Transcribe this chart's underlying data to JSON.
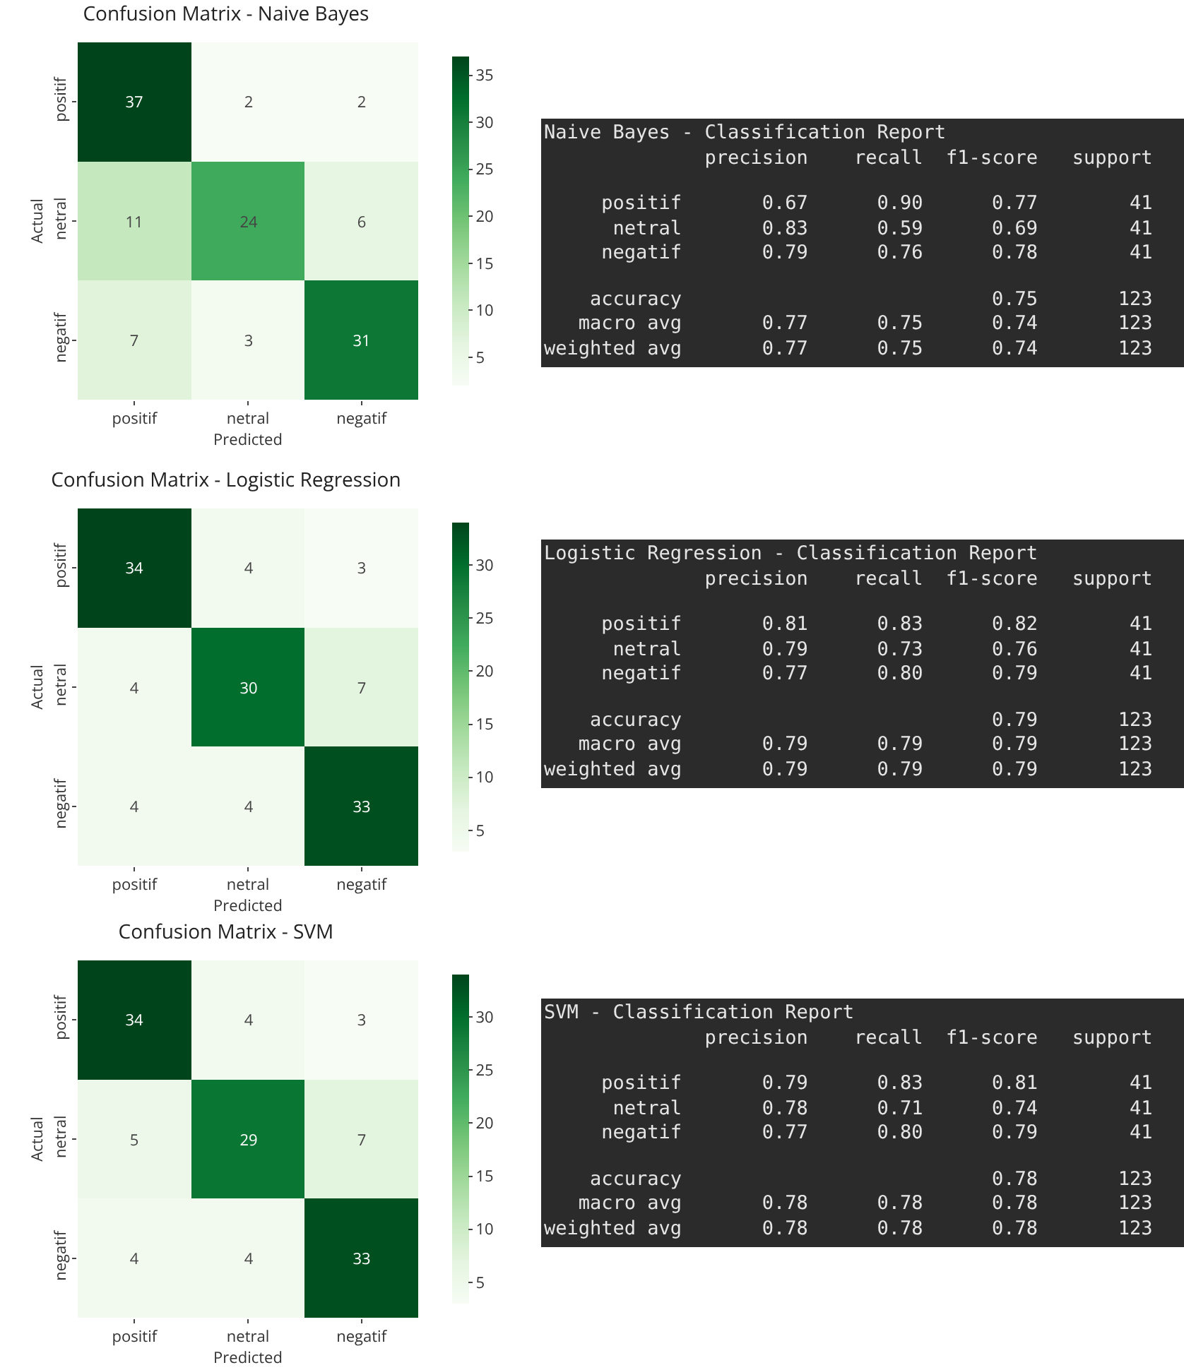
{
  "chart_data": [
    {
      "type": "heatmap",
      "title": "Confusion Matrix - Naive Bayes",
      "xlabel": "Predicted",
      "ylabel": "Actual",
      "categories": [
        "positif",
        "netral",
        "negatif"
      ],
      "y_categories": [
        "positif",
        "netral",
        "negatif"
      ],
      "cells": [
        [
          37,
          2,
          2
        ],
        [
          11,
          24,
          6
        ],
        [
          7,
          3,
          31
        ]
      ],
      "clim": [
        2,
        37
      ],
      "cticks": [
        5,
        10,
        15,
        20,
        25,
        30,
        35
      ],
      "data_labels": true
    },
    {
      "type": "other",
      "title": "Naive Bayes - Classification Report",
      "annotations": [
        "              precision    recall  f1-score   support",
        "     positif       0.67      0.90      0.77        41",
        "      netral       0.83      0.59      0.69        41",
        "     negatif       0.79      0.76      0.78        41",
        "    accuracy                           0.75       123",
        "   macro avg       0.77      0.75      0.74       123",
        "weighted avg       0.77      0.75      0.74       123"
      ]
    },
    {
      "type": "heatmap",
      "title": "Confusion Matrix - Logistic Regression",
      "xlabel": "Predicted",
      "ylabel": "Actual",
      "categories": [
        "positif",
        "netral",
        "negatif"
      ],
      "y_categories": [
        "positif",
        "netral",
        "negatif"
      ],
      "cells": [
        [
          34,
          4,
          3
        ],
        [
          4,
          30,
          7
        ],
        [
          4,
          4,
          33
        ]
      ],
      "clim": [
        3,
        34
      ],
      "cticks": [
        5,
        10,
        15,
        20,
        25,
        30
      ],
      "data_labels": true
    },
    {
      "type": "other",
      "title": "Logistic Regression - Classification Report",
      "annotations": [
        "              precision    recall  f1-score   support",
        "     positif       0.81      0.83      0.82        41",
        "      netral       0.79      0.73      0.76        41",
        "     negatif       0.77      0.80      0.79        41",
        "    accuracy                           0.79       123",
        "   macro avg       0.79      0.79      0.79       123",
        "weighted avg       0.79      0.79      0.79       123"
      ]
    },
    {
      "type": "heatmap",
      "title": "Confusion Matrix - SVM",
      "xlabel": "Predicted",
      "ylabel": "Actual",
      "categories": [
        "positif",
        "netral",
        "negatif"
      ],
      "y_categories": [
        "positif",
        "netral",
        "negatif"
      ],
      "cells": [
        [
          34,
          4,
          3
        ],
        [
          5,
          29,
          7
        ],
        [
          4,
          4,
          33
        ]
      ],
      "clim": [
        3,
        34
      ],
      "cticks": [
        5,
        10,
        15,
        20,
        25,
        30
      ],
      "data_labels": true
    },
    {
      "type": "other",
      "title": "SVM - Classification Report",
      "annotations": [
        "              precision    recall  f1-score   support",
        "     positif       0.79      0.83      0.81        41",
        "      netral       0.78      0.71      0.74        41",
        "     negatif       0.77      0.80      0.79        41",
        "    accuracy                           0.78       123",
        "   macro avg       0.78      0.78      0.78       123",
        "weighted avg       0.78      0.78      0.78       123"
      ]
    }
  ]
}
